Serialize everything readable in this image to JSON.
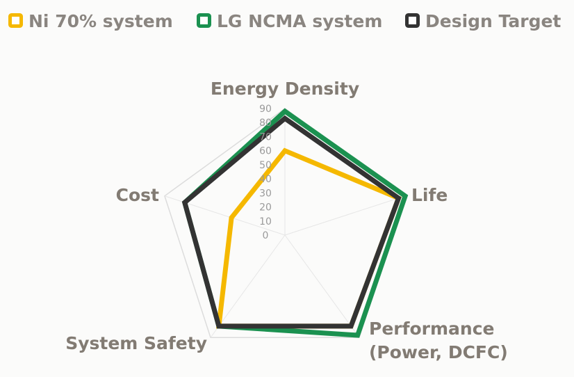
{
  "chart_data": {
    "type": "radar",
    "title": "",
    "categories": [
      {
        "lines": [
          "Energy Density"
        ]
      },
      {
        "lines": [
          "Life"
        ]
      },
      {
        "lines": [
          "Performance",
          "(Power, DCFC)"
        ]
      },
      {
        "lines": [
          "System Safety"
        ]
      },
      {
        "lines": [
          "Cost"
        ]
      }
    ],
    "ticks": [
      "0",
      "10",
      "20",
      "30",
      "40",
      "50",
      "60",
      "70",
      "80",
      "90"
    ],
    "rlim": [
      0,
      90
    ],
    "grid": true,
    "legend_placement": "top",
    "series": [
      {
        "name": "Ni 70% system",
        "color": "#f5b800",
        "values": [
          60,
          85,
          80,
          80,
          40
        ]
      },
      {
        "name": "LG NCMA system",
        "color": "#1b9150",
        "values": [
          88,
          90,
          88,
          80,
          75
        ]
      },
      {
        "name": "Design Target",
        "color": "#333333",
        "values": [
          83,
          85,
          80,
          80,
          75
        ]
      }
    ]
  }
}
